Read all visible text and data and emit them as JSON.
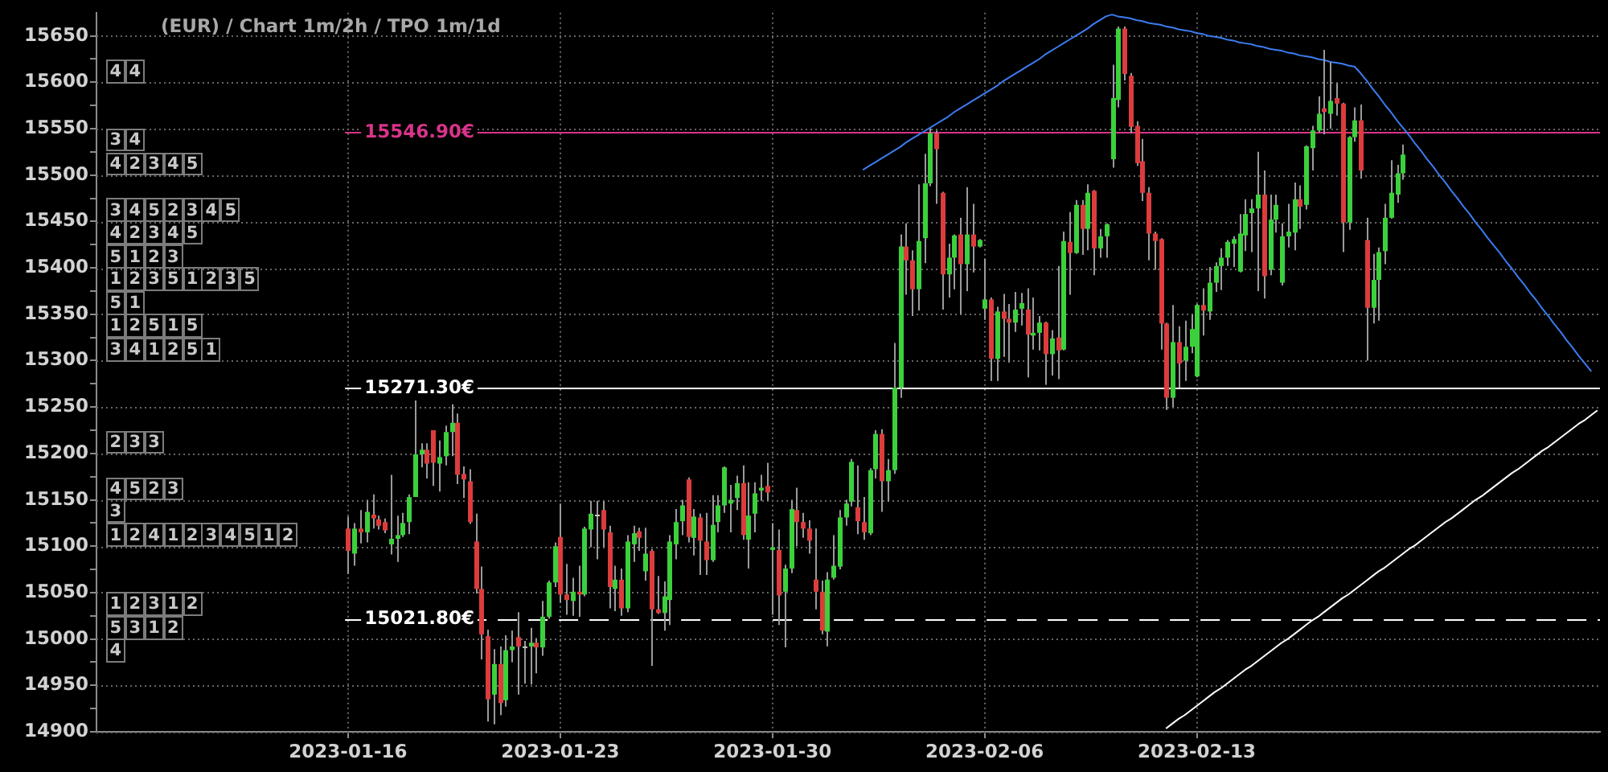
{
  "chart_data": {
    "type": "candlestick",
    "title": "(EUR) / Chart 1m/2h / TPO 1m/1d",
    "categories": [
      null,
      null,
      null,
      null,
      null,
      null,
      null,
      null,
      null,
      null,
      null,
      null,
      null,
      null,
      null,
      null,
      null,
      null,
      null,
      null,
      null,
      null,
      null,
      null,
      null,
      null,
      null,
      null,
      null,
      null,
      null,
      null,
      null,
      null,
      null,
      null,
      null,
      null,
      null,
      null,
      null,
      "2023-01-16",
      null,
      null,
      null,
      null,
      null,
      null,
      null,
      null,
      null,
      null,
      null,
      null,
      null,
      null,
      null,
      null,
      null,
      null,
      null,
      null,
      null,
      null,
      null,
      null,
      null,
      null,
      null,
      null,
      null,
      null,
      null,
      null,
      null,
      null,
      "2023-01-23",
      null,
      null,
      null,
      null,
      null,
      null,
      null,
      null,
      null,
      null,
      null,
      null,
      null,
      null,
      null,
      null,
      null,
      null,
      null,
      null,
      null,
      null,
      null,
      null,
      null,
      null,
      null,
      null,
      null,
      null,
      null,
      null,
      null,
      null,
      "2023-01-30",
      null,
      null,
      null,
      null,
      null,
      null,
      null,
      null,
      null,
      null,
      null,
      null,
      null,
      null,
      null,
      null,
      null,
      null,
      null,
      null,
      null,
      null,
      null,
      null,
      null,
      null,
      null,
      null,
      null,
      null,
      null,
      null,
      null,
      null,
      "2023-02-06",
      null,
      null,
      null,
      null,
      null,
      null,
      null,
      null,
      null,
      null,
      null,
      null,
      null,
      null,
      null,
      null,
      null,
      null,
      null,
      null,
      null,
      null,
      null,
      null,
      null,
      null,
      null,
      null,
      null,
      null,
      null,
      null,
      null,
      null,
      "2023-02-13",
      null,
      null,
      null,
      null,
      null,
      null,
      null,
      null,
      null,
      null,
      null,
      null,
      null,
      null,
      null,
      null,
      null,
      null,
      null,
      null,
      null,
      null,
      null,
      null,
      null,
      null,
      null,
      null,
      null,
      null,
      null,
      null,
      null,
      null,
      null,
      null,
      null,
      null,
      null,
      null,
      null,
      null,
      null,
      null,
      null,
      null,
      null,
      null,
      null,
      null,
      null,
      null,
      null,
      null,
      null,
      null,
      null,
      null,
      null,
      null,
      null,
      null,
      null,
      null,
      null,
      null
    ],
    "ohlc": [
      null,
      null,
      null,
      null,
      null,
      null,
      null,
      null,
      null,
      null,
      null,
      null,
      null,
      null,
      null,
      null,
      null,
      null,
      null,
      null,
      null,
      null,
      null,
      null,
      null,
      null,
      null,
      null,
      null,
      null,
      null,
      null,
      null,
      null,
      null,
      null,
      null,
      null,
      null,
      null,
      null,
      [
        15119,
        15132,
        15070,
        15095
      ],
      [
        15092,
        15125,
        15079,
        15119
      ],
      [
        15119,
        15139,
        15103,
        15115
      ],
      [
        15115,
        15150,
        15104,
        15137
      ],
      [
        15134,
        15156,
        15119,
        15130
      ],
      [
        15129,
        15133,
        15118,
        15122
      ],
      [
        15126,
        15130,
        15114,
        15117
      ],
      [
        15102,
        15177,
        15091,
        15108
      ],
      [
        15108,
        15133,
        15083,
        15112
      ],
      [
        15112,
        15136,
        15110,
        15125
      ],
      [
        15126,
        15156,
        15113,
        15153
      ],
      [
        15153,
        15257,
        15153,
        15199
      ],
      [
        15199,
        15211,
        15185,
        15204
      ],
      [
        15204,
        15211,
        15173,
        15189
      ],
      [
        15225,
        15225,
        15165,
        15190
      ],
      [
        15189,
        15214,
        15159,
        15196
      ],
      [
        15197,
        15230,
        15187,
        15223
      ],
      [
        15223,
        15253,
        15197,
        15233
      ],
      [
        15233,
        15243,
        15167,
        15177
      ],
      [
        15178,
        15186,
        15152,
        15172
      ],
      [
        15170,
        15183,
        15124,
        15126
      ],
      [
        15105,
        15135,
        15049,
        15054
      ],
      [
        15054,
        15078,
        14978,
        15005
      ],
      [
        15003,
        15010,
        14911,
        14935
      ],
      [
        14940,
        14989,
        14908,
        14973
      ],
      [
        14973,
        14992,
        14918,
        14931
      ],
      [
        14934,
        15004,
        14927,
        14988
      ],
      [
        14988,
        15009,
        14975,
        14992
      ],
      [
        15002,
        15029,
        14940,
        14992
      ],
      [
        14992,
        14998,
        14952,
        14992
      ],
      [
        14992,
        15012,
        14951,
        14996
      ],
      [
        14996,
        15001,
        14963,
        14991
      ],
      [
        14991,
        15041,
        14982,
        15024
      ],
      [
        15024,
        15063,
        15022,
        15061
      ],
      [
        15061,
        15104,
        15056,
        15100
      ],
      [
        15110,
        15146,
        15039,
        15048
      ],
      [
        15048,
        15081,
        15026,
        15042
      ],
      [
        15041,
        15066,
        15025,
        15051
      ],
      [
        15051,
        15079,
        15024,
        15048
      ],
      [
        15048,
        15121,
        15046,
        15119
      ],
      [
        15118,
        15149,
        15099,
        15135
      ],
      [
        15134,
        15149,
        15086,
        15134
      ],
      [
        15139,
        15149,
        15099,
        15118
      ],
      [
        15115,
        15122,
        15033,
        15056
      ],
      [
        15054,
        15079,
        15030,
        15064
      ],
      [
        15064,
        15076,
        15025,
        15033
      ],
      [
        15033,
        15112,
        15029,
        15105
      ],
      [
        15102,
        15122,
        15083,
        15114
      ],
      [
        15116,
        15120,
        15095,
        15109
      ],
      [
        15073,
        15120,
        15063,
        15092
      ],
      [
        15095,
        15097,
        14971,
        15032
      ],
      [
        15032,
        15068,
        15027,
        15028
      ],
      [
        15028,
        15062,
        15009,
        15046
      ],
      [
        15042,
        15112,
        15015,
        15105
      ],
      [
        15102,
        15140,
        15086,
        15126
      ],
      [
        15127,
        15150,
        15112,
        15144
      ],
      [
        15172,
        15174,
        15104,
        15110
      ],
      [
        15109,
        15140,
        15090,
        15132
      ],
      [
        15131,
        15135,
        15069,
        15106
      ],
      [
        15105,
        15136,
        15069,
        15085
      ],
      [
        15085,
        15155,
        15083,
        15123
      ],
      [
        15126,
        15155,
        15115,
        15144
      ],
      [
        15144,
        15186,
        15136,
        15185
      ],
      [
        15146,
        15166,
        15115,
        15150
      ],
      [
        15152,
        15176,
        15139,
        15168
      ],
      [
        15168,
        15187,
        15107,
        15112
      ],
      [
        15107,
        15169,
        15076,
        15133
      ],
      [
        15135,
        15169,
        15115,
        15157
      ],
      [
        15160,
        15177,
        15149,
        15163
      ],
      [
        15165,
        15190,
        15149,
        15158
      ],
      [
        15096,
        15125,
        15026,
        15099
      ],
      [
        15096,
        15118,
        15015,
        15047
      ],
      [
        15051,
        15080,
        14991,
        15076
      ],
      [
        15076,
        15150,
        15071,
        15140
      ],
      [
        15139,
        15163,
        15100,
        15126
      ],
      [
        15126,
        15136,
        15109,
        15119
      ],
      [
        15119,
        15128,
        15092,
        15106
      ],
      [
        15064,
        15119,
        15032,
        15051
      ],
      [
        15051,
        15063,
        15005,
        15009
      ],
      [
        15008,
        15072,
        14992,
        15064
      ],
      [
        15066,
        15112,
        15064,
        15079
      ],
      [
        15078,
        15139,
        15075,
        15131
      ],
      [
        15131,
        15150,
        15122,
        15146
      ],
      [
        15148,
        15194,
        15143,
        15191
      ],
      [
        15142,
        15187,
        15113,
        15127
      ],
      [
        15126,
        15153,
        15107,
        15115
      ],
      [
        15114,
        15184,
        15112,
        15182
      ],
      [
        15183,
        15225,
        15173,
        15221
      ],
      [
        15221,
        15226,
        15137,
        15170
      ],
      [
        15170,
        15194,
        15148,
        15182
      ],
      [
        15182,
        15319,
        15178,
        15271
      ],
      [
        15271,
        15436,
        15260,
        15423
      ],
      [
        15423,
        15448,
        15371,
        15408
      ],
      [
        15408,
        15419,
        15348,
        15377
      ],
      [
        15377,
        15490,
        15354,
        15429
      ],
      [
        15432,
        15523,
        15405,
        15491
      ],
      [
        15491,
        15550,
        15488,
        15545
      ],
      [
        15545,
        15548,
        15469,
        15528
      ],
      [
        15481,
        15482,
        15355,
        15393
      ],
      [
        15393,
        15426,
        15368,
        15411
      ],
      [
        15411,
        15436,
        15377,
        15435
      ],
      [
        15436,
        15454,
        15350,
        15404
      ],
      [
        15404,
        15487,
        15375,
        15436
      ],
      [
        15436,
        15469,
        15395,
        15423
      ],
      [
        15423,
        15431,
        15422,
        15430
      ],
      [
        15356,
        15410,
        15344,
        15366
      ],
      [
        15366,
        15368,
        15278,
        15302
      ],
      [
        15302,
        15358,
        15278,
        15353
      ],
      [
        15353,
        15372,
        15304,
        15345
      ],
      [
        15345,
        15361,
        15298,
        15341
      ],
      [
        15341,
        15374,
        15331,
        15355
      ],
      [
        15356,
        15373,
        15338,
        15362
      ],
      [
        15355,
        15378,
        15282,
        15328
      ],
      [
        15327,
        15368,
        15312,
        15330
      ],
      [
        15330,
        15348,
        15311,
        15341
      ],
      [
        15341,
        15342,
        15274,
        15307
      ],
      [
        15307,
        15333,
        15284,
        15324
      ],
      [
        15325,
        15402,
        15280,
        15311
      ],
      [
        15312,
        15439,
        15311,
        15429
      ],
      [
        15428,
        15460,
        15371,
        15416
      ],
      [
        15416,
        15473,
        15415,
        15468
      ],
      [
        15468,
        15473,
        15414,
        15442
      ],
      [
        15442,
        15490,
        15419,
        15481
      ],
      [
        15483,
        15484,
        15392,
        15421
      ],
      [
        15421,
        15442,
        15411,
        15434
      ],
      [
        15434,
        15448,
        15411,
        15447
      ],
      [
        15517,
        15619,
        15508,
        15583
      ],
      [
        15581,
        15660,
        15573,
        15658
      ],
      [
        15658,
        15660,
        15602,
        15609
      ],
      [
        15607,
        15610,
        15545,
        15552
      ],
      [
        15553,
        15558,
        15510,
        15513
      ],
      [
        15515,
        15539,
        15472,
        15481
      ],
      [
        15481,
        15487,
        15408,
        15437
      ],
      [
        15437,
        15439,
        15398,
        15429
      ],
      [
        15431,
        15432,
        15312,
        15340
      ],
      [
        15340,
        15341,
        15247,
        15260
      ],
      [
        15260,
        15360,
        15250,
        15320
      ],
      [
        15320,
        15337,
        15271,
        15297
      ],
      [
        15300,
        15343,
        15278,
        15315
      ],
      [
        15315,
        15350,
        15308,
        15334
      ],
      [
        15283,
        15361,
        15282,
        15360
      ],
      [
        15360,
        15378,
        15327,
        15354
      ],
      [
        15353,
        15401,
        15344,
        15384
      ],
      [
        15384,
        15406,
        15374,
        15402
      ],
      [
        15402,
        15421,
        15376,
        15411
      ],
      [
        15411,
        15430,
        15402,
        15428
      ],
      [
        15426,
        15434,
        15401,
        15431
      ],
      [
        15396,
        15458,
        15395,
        15437
      ],
      [
        15435,
        15474,
        15418,
        15458
      ],
      [
        15459,
        15474,
        15417,
        15464
      ],
      [
        15464,
        15525,
        15375,
        15479
      ],
      [
        15479,
        15505,
        15367,
        15391
      ],
      [
        15398,
        15479,
        15392,
        15452
      ],
      [
        15452,
        15479,
        15438,
        15468
      ],
      [
        15384,
        15448,
        15381,
        15434
      ],
      [
        15434,
        15469,
        15422,
        15439
      ],
      [
        15438,
        15492,
        15419,
        15474
      ],
      [
        15474,
        15489,
        15442,
        15466
      ],
      [
        15468,
        15532,
        15463,
        15531
      ],
      [
        15529,
        15553,
        15505,
        15548
      ],
      [
        15548,
        15585,
        15546,
        15566
      ],
      [
        15572,
        15635,
        15544,
        15568
      ],
      [
        15566,
        15622,
        15550,
        15580
      ],
      [
        15583,
        15599,
        15564,
        15577
      ],
      [
        15577,
        15578,
        15417,
        15449
      ],
      [
        15449,
        15542,
        15441,
        15541
      ],
      [
        15541,
        15573,
        15536,
        15559
      ],
      [
        15559,
        15576,
        15496,
        15505
      ],
      [
        15430,
        15454,
        15300,
        15357
      ],
      [
        15357,
        15415,
        15340,
        15387
      ],
      [
        15387,
        15422,
        15343,
        15417
      ],
      [
        15418,
        15469,
        15404,
        15454
      ],
      [
        15454,
        15516,
        15453,
        15481
      ],
      [
        15479,
        15511,
        15470,
        15502
      ],
      [
        15502,
        15533,
        15495,
        15522
      ],
      null,
      null,
      null,
      null,
      null,
      null,
      null,
      null,
      null,
      null,
      null,
      null,
      null,
      null,
      null,
      null,
      null,
      null,
      null,
      null,
      null,
      null,
      null,
      null,
      null,
      null,
      null,
      null,
      null,
      null,
      null,
      null
    ],
    "colors": [
      null,
      null,
      null,
      null,
      null,
      null,
      null,
      null,
      null,
      null,
      null,
      null,
      null,
      null,
      null,
      null,
      null,
      null,
      null,
      null,
      null,
      null,
      null,
      null,
      null,
      null,
      null,
      null,
      null,
      null,
      null,
      null,
      null,
      null,
      null,
      null,
      null,
      null,
      null,
      null,
      null,
      "#dc3c3c",
      "#3cd03c",
      "#dc3c3c",
      "#3cd03c",
      "#dc3c3c",
      "#dc3c3c",
      "#dc3c3c",
      "#3cd03c",
      "#3cd03c",
      "#3cd03c",
      "#3cd03c",
      "#3cd03c",
      "#3cd03c",
      "#dc3c3c",
      "#dc3c3c",
      "#3cd03c",
      "#3cd03c",
      "#3cd03c",
      "#dc3c3c",
      "#dc3c3c",
      "#dc3c3c",
      "#dc3c3c",
      "#dc3c3c",
      "#dc3c3c",
      "#3cd03c",
      "#dc3c3c",
      "#3cd03c",
      "#3cd03c",
      "#dc3c3c",
      "#c8c8c8",
      "#3cd03c",
      "#dc3c3c",
      "#3cd03c",
      "#3cd03c",
      "#3cd03c",
      "#dc3c3c",
      "#dc3c3c",
      "#3cd03c",
      "#dc3c3c",
      "#3cd03c",
      "#3cd03c",
      "#c8c8c8",
      "#dc3c3c",
      "#dc3c3c",
      "#3cd03c",
      "#dc3c3c",
      "#3cd03c",
      "#3cd03c",
      "#dc3c3c",
      "#3cd03c",
      "#dc3c3c",
      "#dc3c3c",
      "#3cd03c",
      "#3cd03c",
      "#3cd03c",
      "#3cd03c",
      "#dc3c3c",
      "#3cd03c",
      "#dc3c3c",
      "#dc3c3c",
      "#3cd03c",
      "#3cd03c",
      "#3cd03c",
      "#3cd03c",
      "#3cd03c",
      "#dc3c3c",
      "#3cd03c",
      "#3cd03c",
      "#3cd03c",
      "#dc3c3c",
      "#3cd03c",
      "#dc3c3c",
      "#3cd03c",
      "#3cd03c",
      "#dc3c3c",
      "#dc3c3c",
      "#dc3c3c",
      "#dc3c3c",
      "#dc3c3c",
      "#3cd03c",
      "#3cd03c",
      "#3cd03c",
      "#3cd03c",
      "#3cd03c",
      "#dc3c3c",
      "#dc3c3c",
      "#3cd03c",
      "#3cd03c",
      "#dc3c3c",
      "#3cd03c",
      "#3cd03c",
      "#3cd03c",
      "#dc3c3c",
      "#dc3c3c",
      "#3cd03c",
      "#3cd03c",
      "#3cd03c",
      "#dc3c3c",
      "#dc3c3c",
      "#3cd03c",
      "#3cd03c",
      "#dc3c3c",
      "#3cd03c",
      "#dc3c3c",
      "#3cd03c",
      "#3cd03c",
      "#dc3c3c",
      "#3cd03c",
      "#dc3c3c",
      "#dc3c3c",
      "#3cd03c",
      "#3cd03c",
      "#dc3c3c",
      "#3cd03c",
      "#3cd03c",
      "#dc3c3c",
      "#3cd03c",
      "#dc3c3c",
      "#3cd03c",
      "#dc3c3c",
      "#3cd03c",
      "#dc3c3c",
      "#3cd03c",
      "#dc3c3c",
      "#3cd03c",
      "#3cd03c",
      "#3cd03c",
      "#3cd03c",
      "#dc3c3c",
      "#dc3c3c",
      "#dc3c3c",
      "#dc3c3c",
      "#dc3c3c",
      "#dc3c3c",
      "#dc3c3c",
      "#dc3c3c",
      "#3cd03c",
      "#dc3c3c",
      "#3cd03c",
      "#3cd03c",
      "#3cd03c",
      "#dc3c3c",
      "#3cd03c",
      "#3cd03c",
      "#3cd03c",
      "#3cd03c",
      "#3cd03c",
      "#3cd03c",
      "#3cd03c",
      "#3cd03c",
      "#3cd03c",
      "#dc3c3c",
      "#3cd03c",
      "#3cd03c",
      "#3cd03c",
      "#3cd03c",
      "#3cd03c",
      "#dc3c3c",
      "#3cd03c",
      "#3cd03c",
      "#3cd03c",
      "#dc3c3c",
      "#3cd03c",
      "#dc3c3c",
      "#dc3c3c",
      "#3cd03c",
      "#3cd03c",
      "#dc3c3c",
      "#dc3c3c",
      "#3cd03c",
      "#3cd03c",
      "#3cd03c",
      "#3cd03c",
      "#3cd03c",
      "#3cd03c",
      null,
      null,
      null,
      null,
      null,
      null,
      null,
      null,
      null,
      null,
      null,
      null,
      null,
      null,
      null,
      null,
      null,
      null,
      null,
      null,
      null,
      null,
      null,
      null,
      null,
      null,
      null,
      null,
      null,
      null,
      null,
      null
    ],
    "color": "#9a9a9a",
    "series": [
      {
        "type": "line",
        "color": "#3c7cf0",
        "values": [
          null,
          null,
          null,
          null,
          null,
          null,
          null,
          null,
          null,
          null,
          null,
          null,
          null,
          null,
          null,
          null,
          null,
          null,
          null,
          null,
          null,
          null,
          null,
          null,
          null,
          null,
          null,
          null,
          null,
          null,
          null,
          null,
          null,
          null,
          null,
          null,
          null,
          null,
          null,
          null,
          null,
          null,
          null,
          null,
          null,
          null,
          null,
          null,
          null,
          null,
          null,
          null,
          null,
          null,
          null,
          null,
          null,
          null,
          null,
          null,
          null,
          null,
          null,
          null,
          null,
          null,
          null,
          null,
          null,
          null,
          null,
          null,
          null,
          null,
          null,
          null,
          null,
          null,
          null,
          null,
          null,
          null,
          null,
          null,
          null,
          null,
          null,
          null,
          null,
          null,
          null,
          null,
          null,
          null,
          null,
          null,
          null,
          null,
          null,
          null,
          null,
          null,
          null,
          null,
          null,
          null,
          null,
          null,
          null,
          null,
          null,
          null,
          null,
          null,
          null,
          null,
          null,
          null,
          null,
          null,
          null,
          null,
          null,
          null,
          null,
          null,
          15506,
          15510,
          15514,
          15518,
          15522,
          15526,
          15530,
          15535,
          15539,
          15543,
          15547,
          15551,
          15555,
          15559,
          15563,
          15568,
          15572,
          15576,
          15580,
          15584,
          15588,
          15592,
          15596,
          15601,
          15605,
          15609,
          15613,
          15617,
          15621,
          15625,
          15630,
          15634,
          15638,
          15642,
          15646,
          15650,
          15654,
          15658,
          15663,
          15667,
          15671,
          15673,
          15671,
          15670,
          15669,
          15667,
          15666,
          15664,
          15663,
          15662,
          15660,
          15659,
          15657,
          15656,
          15655,
          15653,
          15652,
          15650,
          15649,
          15648,
          15646,
          15645,
          15643,
          15642,
          15641,
          15639,
          15638,
          15636,
          15635,
          15634,
          15632,
          15631,
          15629,
          15628,
          15627,
          15625,
          15624,
          15622,
          15621,
          15620,
          15618,
          15617,
          15610,
          15602,
          15593,
          15585,
          15576,
          15568,
          15559,
          15551,
          15543,
          15534,
          15526,
          15517,
          15509,
          15500,
          15492,
          15483,
          15475,
          15466,
          15458,
          15449,
          15441,
          15432,
          15424,
          15416,
          15407,
          15399,
          15390,
          15382,
          15373,
          15365,
          15356,
          15348,
          15339,
          15331,
          15322,
          15314,
          15305,
          15297,
          15289,
          null
        ]
      },
      {
        "type": "line",
        "color": "#ffffff",
        "values": [
          null,
          null,
          null,
          null,
          null,
          null,
          null,
          null,
          null,
          null,
          null,
          null,
          null,
          null,
          null,
          null,
          null,
          null,
          null,
          null,
          null,
          null,
          null,
          null,
          null,
          null,
          null,
          null,
          null,
          null,
          null,
          null,
          null,
          null,
          null,
          null,
          null,
          null,
          null,
          null,
          null,
          null,
          null,
          null,
          null,
          null,
          null,
          null,
          null,
          null,
          null,
          null,
          null,
          null,
          null,
          null,
          null,
          null,
          null,
          null,
          null,
          null,
          null,
          null,
          null,
          null,
          null,
          null,
          null,
          null,
          null,
          null,
          null,
          null,
          null,
          null,
          null,
          null,
          null,
          null,
          null,
          null,
          null,
          null,
          null,
          null,
          null,
          null,
          null,
          null,
          null,
          null,
          null,
          null,
          null,
          null,
          null,
          null,
          null,
          null,
          null,
          null,
          null,
          null,
          null,
          null,
          null,
          null,
          null,
          null,
          null,
          null,
          null,
          null,
          null,
          null,
          null,
          null,
          null,
          null,
          null,
          null,
          null,
          null,
          null,
          null,
          null,
          null,
          null,
          null,
          null,
          null,
          null,
          null,
          null,
          null,
          null,
          null,
          null,
          null,
          null,
          null,
          null,
          null,
          null,
          null,
          null,
          null,
          null,
          null,
          null,
          null,
          null,
          null,
          null,
          null,
          null,
          null,
          null,
          null,
          null,
          null,
          null,
          null,
          null,
          null,
          null,
          null,
          null,
          null,
          null,
          null,
          null,
          null,
          null,
          null,
          14904,
          14909,
          14914,
          14918,
          14923,
          14928,
          14933,
          14938,
          14943,
          14947,
          14952,
          14957,
          14962,
          14967,
          14971,
          14976,
          14981,
          14986,
          14991,
          14996,
          15000,
          15005,
          15010,
          15015,
          15020,
          15024,
          15029,
          15034,
          15039,
          15044,
          15048,
          15053,
          15058,
          15063,
          15068,
          15073,
          15077,
          15082,
          15087,
          15092,
          15097,
          15101,
          15106,
          15111,
          15116,
          15121,
          15126,
          15130,
          15135,
          15140,
          15145,
          15150,
          15154,
          15159,
          15164,
          15169,
          15174,
          15179,
          15183,
          15188,
          15193,
          15198,
          15203,
          15207,
          15212,
          15217,
          15222,
          15227,
          15232,
          15236,
          15241,
          15246
        ]
      }
    ],
    "ylim": [
      14900,
      15675
    ],
    "yticks": [
      14900,
      {
        "value": 14925,
        "label": null
      },
      14950,
      {
        "value": 14975,
        "label": null
      },
      15000,
      {
        "value": 15025,
        "label": null
      },
      15050,
      {
        "value": 15075,
        "label": null
      },
      15100,
      {
        "value": 15125,
        "label": null
      },
      15150,
      {
        "value": 15175,
        "label": null
      },
      15200,
      {
        "value": 15225,
        "label": null
      },
      15250,
      {
        "value": 15275,
        "label": null
      },
      15300,
      {
        "value": 15325,
        "label": null
      },
      15350,
      {
        "value": 15375,
        "label": null
      },
      15400,
      {
        "value": 15425,
        "label": null
      },
      15450,
      {
        "value": 15475,
        "label": null
      },
      15500,
      {
        "value": 15525,
        "label": null
      },
      15550,
      {
        "value": 15575,
        "label": null
      },
      15600,
      {
        "value": 15625,
        "label": null
      },
      15650
    ],
    "grid": true,
    "ref_lines": [
      {
        "axis": "y",
        "value": 15546.9,
        "label": "15546.90€",
        "color": "#d8348a"
      },
      {
        "axis": "y",
        "value": 15271.3,
        "label": "15271.30€",
        "color": "#ffffff"
      },
      {
        "axis": "y",
        "value": 15021.8,
        "label": "15021.80€",
        "color": "#ffffff",
        "line_style": "dashed"
      }
    ],
    "annotations": [
      {
        "text": "4",
        "y": 15612
      },
      {
        "text": "4",
        "y": 15612
      },
      {
        "text": "3",
        "y": 15538
      },
      {
        "text": "4",
        "y": 15538
      },
      {
        "text": "4",
        "y": 15512
      },
      {
        "text": "2",
        "y": 15512
      },
      {
        "text": "3",
        "y": 15512
      },
      {
        "text": "4",
        "y": 15512
      },
      {
        "text": "5",
        "y": 15512
      },
      {
        "text": "3",
        "y": 15462
      },
      {
        "text": "4",
        "y": 15462
      },
      {
        "text": "5",
        "y": 15462
      },
      {
        "text": "2",
        "y": 15462
      },
      {
        "text": "3",
        "y": 15462
      },
      {
        "text": "4",
        "y": 15462
      },
      {
        "text": "5",
        "y": 15462
      },
      {
        "text": "4",
        "y": 15438
      },
      {
        "text": "2",
        "y": 15438
      },
      {
        "text": "3",
        "y": 15438
      },
      {
        "text": "4",
        "y": 15438
      },
      {
        "text": "5",
        "y": 15438
      },
      {
        "text": "5",
        "y": 15412
      },
      {
        "text": "1",
        "y": 15412
      },
      {
        "text": "2",
        "y": 15412
      },
      {
        "text": "3",
        "y": 15412
      },
      {
        "text": "1",
        "y": 15388
      },
      {
        "text": "2",
        "y": 15388
      },
      {
        "text": "3",
        "y": 15388
      },
      {
        "text": "5",
        "y": 15388
      },
      {
        "text": "1",
        "y": 15388
      },
      {
        "text": "2",
        "y": 15388
      },
      {
        "text": "3",
        "y": 15388
      },
      {
        "text": "5",
        "y": 15388
      },
      {
        "text": "5",
        "y": 15362
      },
      {
        "text": "1",
        "y": 15362
      },
      {
        "text": "1",
        "y": 15338
      },
      {
        "text": "2",
        "y": 15338
      },
      {
        "text": "5",
        "y": 15338
      },
      {
        "text": "1",
        "y": 15338
      },
      {
        "text": "5",
        "y": 15338
      },
      {
        "text": "3",
        "y": 15312
      },
      {
        "text": "4",
        "y": 15312
      },
      {
        "text": "1",
        "y": 15312
      },
      {
        "text": "2",
        "y": 15312
      },
      {
        "text": "5",
        "y": 15312
      },
      {
        "text": "1",
        "y": 15312
      },
      {
        "text": "2",
        "y": 15212
      },
      {
        "text": "3",
        "y": 15212
      },
      {
        "text": "3",
        "y": 15212
      },
      {
        "text": "4",
        "y": 15162
      },
      {
        "text": "5",
        "y": 15162
      },
      {
        "text": "2",
        "y": 15162
      },
      {
        "text": "3",
        "y": 15162
      },
      {
        "text": "3",
        "y": 15138
      },
      {
        "text": "1",
        "y": 15112
      },
      {
        "text": "2",
        "y": 15112
      },
      {
        "text": "4",
        "y": 15112
      },
      {
        "text": "1",
        "y": 15112
      },
      {
        "text": "2",
        "y": 15112
      },
      {
        "text": "3",
        "y": 15112
      },
      {
        "text": "4",
        "y": 15112
      },
      {
        "text": "5",
        "y": 15112
      },
      {
        "text": "1",
        "y": 15112
      },
      {
        "text": "2",
        "y": 15112
      },
      {
        "text": "1",
        "y": 15038
      },
      {
        "text": "2",
        "y": 15038
      },
      {
        "text": "3",
        "y": 15038
      },
      {
        "text": "1",
        "y": 15038
      },
      {
        "text": "2",
        "y": 15038
      },
      {
        "text": "5",
        "y": 15012
      },
      {
        "text": "3",
        "y": 15012
      },
      {
        "text": "1",
        "y": 15012
      },
      {
        "text": "2",
        "y": 15012
      },
      {
        "text": "4",
        "y": 14988
      }
    ]
  }
}
